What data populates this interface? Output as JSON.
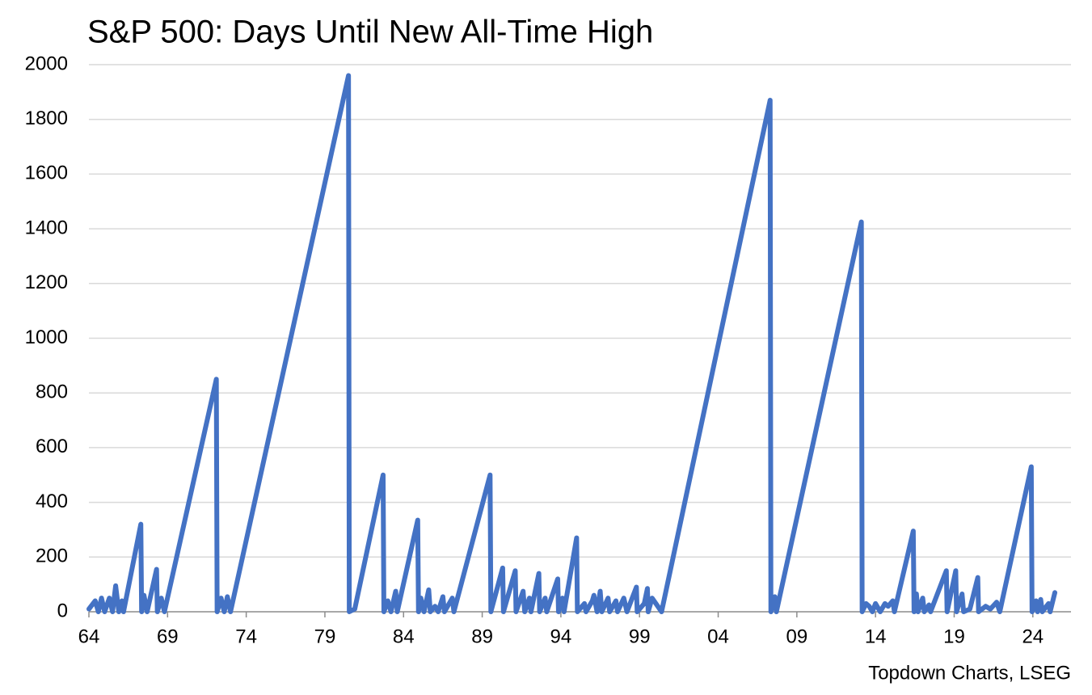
{
  "chart_data": {
    "type": "line",
    "title": "S&P 500: Days Until New All-Time High",
    "source": "Topdown Charts, LSEG",
    "color": "#4472c4",
    "grid": true,
    "x": [
      1964.0,
      1964.4,
      1964.6,
      1964.8,
      1965.0,
      1965.3,
      1965.5,
      1965.7,
      1965.9,
      1966.1,
      1966.2,
      1967.3,
      1967.35,
      1967.5,
      1967.7,
      1968.3,
      1968.35,
      1968.6,
      1968.8,
      1972.1,
      1972.15,
      1972.4,
      1972.6,
      1972.8,
      1973.0,
      1980.5,
      1980.55,
      1980.9,
      1982.7,
      1982.75,
      1983.0,
      1983.2,
      1983.5,
      1983.6,
      1984.9,
      1984.95,
      1985.1,
      1985.3,
      1985.6,
      1985.7,
      1986.0,
      1986.2,
      1986.5,
      1986.6,
      1987.1,
      1987.2,
      1989.5,
      1989.55,
      1990.3,
      1990.35,
      1991.1,
      1991.15,
      1991.6,
      1991.7,
      1992.0,
      1992.1,
      1992.6,
      1992.65,
      1993.0,
      1993.1,
      1993.8,
      1993.85,
      1994.1,
      1994.2,
      1995.0,
      1995.05,
      1995.5,
      1995.6,
      1996.0,
      1996.1,
      1996.3,
      1996.5,
      1996.6,
      1997.0,
      1997.1,
      1997.5,
      1997.6,
      1998.0,
      1998.2,
      1998.8,
      1998.85,
      1999.3,
      1999.5,
      1999.55,
      1999.8,
      2000.4,
      2007.3,
      2007.35,
      2007.6,
      2007.7,
      2013.1,
      2013.15,
      2013.4,
      2013.6,
      2013.8,
      2014.0,
      2014.3,
      2014.6,
      2014.8,
      2015.1,
      2015.2,
      2016.4,
      2016.45,
      2016.6,
      2016.7,
      2017.0,
      2017.1,
      2017.4,
      2017.5,
      2018.5,
      2018.55,
      2019.1,
      2019.15,
      2019.5,
      2019.6,
      2020.0,
      2020.5,
      2020.55,
      2021.0,
      2021.3,
      2021.7,
      2021.9,
      2023.9,
      2023.95,
      2024.2,
      2024.3,
      2024.5,
      2024.6,
      2025.0,
      2025.1,
      2025.4
    ],
    "values": [
      10,
      40,
      0,
      50,
      0,
      50,
      0,
      95,
      0,
      40,
      0,
      320,
      0,
      60,
      0,
      155,
      0,
      50,
      0,
      850,
      0,
      50,
      0,
      55,
      0,
      1960,
      0,
      10,
      500,
      0,
      40,
      0,
      75,
      0,
      335,
      0,
      50,
      0,
      80,
      0,
      20,
      0,
      55,
      0,
      50,
      0,
      500,
      0,
      160,
      0,
      150,
      0,
      75,
      0,
      50,
      0,
      140,
      0,
      50,
      0,
      120,
      0,
      50,
      0,
      270,
      0,
      30,
      0,
      40,
      60,
      0,
      75,
      0,
      50,
      0,
      40,
      0,
      50,
      0,
      90,
      0,
      30,
      85,
      0,
      50,
      0,
      1870,
      0,
      55,
      0,
      1425,
      0,
      30,
      20,
      0,
      30,
      0,
      30,
      20,
      40,
      0,
      295,
      0,
      65,
      0,
      50,
      0,
      25,
      0,
      150,
      0,
      150,
      0,
      65,
      0,
      10,
      125,
      0,
      20,
      10,
      35,
      0,
      530,
      0,
      40,
      0,
      45,
      0,
      30,
      0,
      70
    ],
    "xlim": [
      1964,
      2025.5
    ],
    "xticks": [
      {
        "value": 1964,
        "label": "64"
      },
      {
        "value": 1969,
        "label": "69"
      },
      {
        "value": 1974,
        "label": "74"
      },
      {
        "value": 1979,
        "label": "79"
      },
      {
        "value": 1984,
        "label": "84"
      },
      {
        "value": 1989,
        "label": "89"
      },
      {
        "value": 1994,
        "label": "94"
      },
      {
        "value": 1999,
        "label": "99"
      },
      {
        "value": 2004,
        "label": "04"
      },
      {
        "value": 2009,
        "label": "09"
      },
      {
        "value": 2014,
        "label": "14"
      },
      {
        "value": 2019,
        "label": "19"
      },
      {
        "value": 2024,
        "label": "24"
      }
    ],
    "ylim": [
      0,
      2000
    ],
    "yticks": [
      0,
      200,
      400,
      600,
      800,
      1000,
      1200,
      1400,
      1600,
      1800,
      2000
    ]
  }
}
